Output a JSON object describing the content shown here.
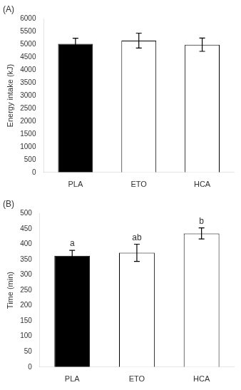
{
  "chart_data": [
    {
      "type": "bar",
      "title": "(A)",
      "categories": [
        "PLA",
        "ETO",
        "HCA"
      ],
      "values": [
        5020,
        5150,
        4990
      ],
      "errors": [
        220,
        290,
        260
      ],
      "ylabel": "Energy intake (kJ)",
      "ylim": [
        0,
        6000
      ],
      "yticks": [
        0,
        500,
        1000,
        1500,
        2000,
        2500,
        3000,
        3500,
        4000,
        4500,
        5000,
        5500,
        6000
      ],
      "colors": [
        "#000000",
        "#ffffff",
        "#ffffff"
      ],
      "grid": false
    },
    {
      "type": "bar",
      "title": "(B)",
      "categories": [
        "PLA",
        "ETO",
        "HCA"
      ],
      "values": [
        362,
        372,
        435
      ],
      "errors": [
        18,
        28,
        18
      ],
      "annotations": [
        "a",
        "ab",
        "b"
      ],
      "ylabel": "Time (min)",
      "ylim": [
        0,
        500
      ],
      "yticks": [
        0,
        50,
        100,
        150,
        200,
        250,
        300,
        350,
        400,
        450,
        500
      ],
      "colors": [
        "#000000",
        "#ffffff",
        "#ffffff"
      ],
      "grid": false
    }
  ]
}
